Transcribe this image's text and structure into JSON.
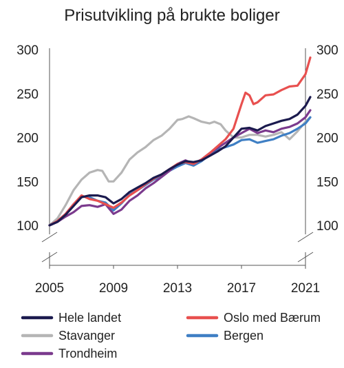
{
  "chart_data": {
    "type": "line",
    "title": "Prisutvikling på brukte boliger",
    "xlabel": "",
    "ylabel": "",
    "xlim": [
      2005,
      2021
    ],
    "ylim": [
      100,
      300
    ],
    "x_ticks": [
      "2005",
      "2009",
      "2013",
      "2017",
      "2021"
    ],
    "y_ticks": [
      "100",
      "150",
      "200",
      "250",
      "300"
    ],
    "grid": false,
    "legend_position": "bottom",
    "series": [
      {
        "name": "Hele landet",
        "color": "#1b1a4e",
        "points": [
          [
            2005,
            100
          ],
          [
            2005.5,
            104
          ],
          [
            2006,
            112
          ],
          [
            2006.5,
            122
          ],
          [
            2007,
            132
          ],
          [
            2007.5,
            134
          ],
          [
            2008,
            134
          ],
          [
            2008.5,
            132
          ],
          [
            2009,
            125
          ],
          [
            2009.5,
            130
          ],
          [
            2010,
            138
          ],
          [
            2010.5,
            143
          ],
          [
            2011,
            148
          ],
          [
            2011.5,
            154
          ],
          [
            2012,
            158
          ],
          [
            2012.5,
            164
          ],
          [
            2013,
            169
          ],
          [
            2013.5,
            173
          ],
          [
            2014,
            172
          ],
          [
            2014.5,
            174
          ],
          [
            2015,
            179
          ],
          [
            2015.5,
            184
          ],
          [
            2016,
            190
          ],
          [
            2016.5,
            200
          ],
          [
            2017,
            210
          ],
          [
            2017.5,
            211
          ],
          [
            2018,
            208
          ],
          [
            2018.5,
            213
          ],
          [
            2019,
            216
          ],
          [
            2019.5,
            219
          ],
          [
            2020,
            221
          ],
          [
            2020.5,
            226
          ],
          [
            2021,
            236
          ],
          [
            2021.3,
            246
          ]
        ]
      },
      {
        "name": "Oslo med Bærum",
        "color": "#e8504f",
        "points": [
          [
            2005,
            100
          ],
          [
            2005.5,
            105
          ],
          [
            2006,
            113
          ],
          [
            2006.5,
            124
          ],
          [
            2007,
            134
          ],
          [
            2007.5,
            130
          ],
          [
            2008,
            128
          ],
          [
            2008.5,
            124
          ],
          [
            2009,
            120
          ],
          [
            2009.5,
            126
          ],
          [
            2010,
            134
          ],
          [
            2010.5,
            140
          ],
          [
            2011,
            147
          ],
          [
            2011.5,
            153
          ],
          [
            2012,
            158
          ],
          [
            2012.5,
            164
          ],
          [
            2013,
            170
          ],
          [
            2013.5,
            172
          ],
          [
            2014,
            170
          ],
          [
            2014.5,
            175
          ],
          [
            2015,
            182
          ],
          [
            2015.5,
            190
          ],
          [
            2016,
            198
          ],
          [
            2016.5,
            210
          ],
          [
            2017,
            238
          ],
          [
            2017.25,
            251
          ],
          [
            2017.5,
            248
          ],
          [
            2017.75,
            238
          ],
          [
            2018,
            240
          ],
          [
            2018.5,
            248
          ],
          [
            2019,
            249
          ],
          [
            2019.5,
            254
          ],
          [
            2020,
            258
          ],
          [
            2020.5,
            259
          ],
          [
            2021,
            272
          ],
          [
            2021.3,
            291
          ]
        ]
      },
      {
        "name": "Stavanger",
        "color": "#b5b5b5",
        "points": [
          [
            2005,
            100
          ],
          [
            2005.5,
            108
          ],
          [
            2006,
            123
          ],
          [
            2006.5,
            140
          ],
          [
            2007,
            152
          ],
          [
            2007.5,
            160
          ],
          [
            2008,
            163
          ],
          [
            2008.3,
            162
          ],
          [
            2008.7,
            150
          ],
          [
            2009,
            150
          ],
          [
            2009.5,
            160
          ],
          [
            2010,
            175
          ],
          [
            2010.5,
            183
          ],
          [
            2011,
            189
          ],
          [
            2011.5,
            197
          ],
          [
            2012,
            202
          ],
          [
            2012.5,
            210
          ],
          [
            2013,
            220
          ],
          [
            2013.3,
            221
          ],
          [
            2013.7,
            224
          ],
          [
            2014,
            222
          ],
          [
            2014.5,
            218
          ],
          [
            2015,
            216
          ],
          [
            2015.3,
            218
          ],
          [
            2015.7,
            215
          ],
          [
            2016,
            208
          ],
          [
            2016.5,
            200
          ],
          [
            2017,
            200
          ],
          [
            2017.5,
            203
          ],
          [
            2018,
            203
          ],
          [
            2018.5,
            201
          ],
          [
            2019,
            203
          ],
          [
            2019.5,
            206
          ],
          [
            2020,
            198
          ],
          [
            2020.5,
            207
          ],
          [
            2021,
            218
          ],
          [
            2021.3,
            223
          ]
        ]
      },
      {
        "name": "Bergen",
        "color": "#3f7fc4",
        "points": [
          [
            2005,
            100
          ],
          [
            2005.5,
            105
          ],
          [
            2006,
            113
          ],
          [
            2006.5,
            124
          ],
          [
            2007,
            133
          ],
          [
            2007.5,
            132
          ],
          [
            2008,
            128
          ],
          [
            2008.5,
            126
          ],
          [
            2009,
            117
          ],
          [
            2009.5,
            125
          ],
          [
            2010,
            135
          ],
          [
            2010.5,
            140
          ],
          [
            2011,
            146
          ],
          [
            2011.5,
            152
          ],
          [
            2012,
            156
          ],
          [
            2012.5,
            162
          ],
          [
            2013,
            167
          ],
          [
            2013.5,
            171
          ],
          [
            2014,
            168
          ],
          [
            2014.5,
            173
          ],
          [
            2015,
            180
          ],
          [
            2015.5,
            186
          ],
          [
            2016,
            189
          ],
          [
            2016.5,
            192
          ],
          [
            2017,
            197
          ],
          [
            2017.5,
            198
          ],
          [
            2018,
            194
          ],
          [
            2018.5,
            196
          ],
          [
            2019,
            198
          ],
          [
            2019.5,
            202
          ],
          [
            2020,
            205
          ],
          [
            2020.5,
            210
          ],
          [
            2021,
            216
          ],
          [
            2021.3,
            223
          ]
        ]
      },
      {
        "name": "Trondheim",
        "color": "#7b3a8d",
        "points": [
          [
            2005,
            100
          ],
          [
            2005.5,
            104
          ],
          [
            2006,
            110
          ],
          [
            2006.5,
            115
          ],
          [
            2007,
            122
          ],
          [
            2007.5,
            123
          ],
          [
            2008,
            121
          ],
          [
            2008.5,
            124
          ],
          [
            2009,
            113
          ],
          [
            2009.5,
            118
          ],
          [
            2010,
            128
          ],
          [
            2010.5,
            134
          ],
          [
            2011,
            142
          ],
          [
            2011.5,
            148
          ],
          [
            2012,
            155
          ],
          [
            2012.5,
            162
          ],
          [
            2013,
            170
          ],
          [
            2013.5,
            174
          ],
          [
            2014,
            170
          ],
          [
            2014.5,
            175
          ],
          [
            2015,
            182
          ],
          [
            2015.5,
            188
          ],
          [
            2016,
            194
          ],
          [
            2016.5,
            200
          ],
          [
            2017,
            205
          ],
          [
            2017.5,
            210
          ],
          [
            2018,
            205
          ],
          [
            2018.5,
            208
          ],
          [
            2019,
            206
          ],
          [
            2019.5,
            210
          ],
          [
            2020,
            212
          ],
          [
            2020.5,
            216
          ],
          [
            2021,
            223
          ],
          [
            2021.3,
            231
          ]
        ]
      }
    ]
  }
}
